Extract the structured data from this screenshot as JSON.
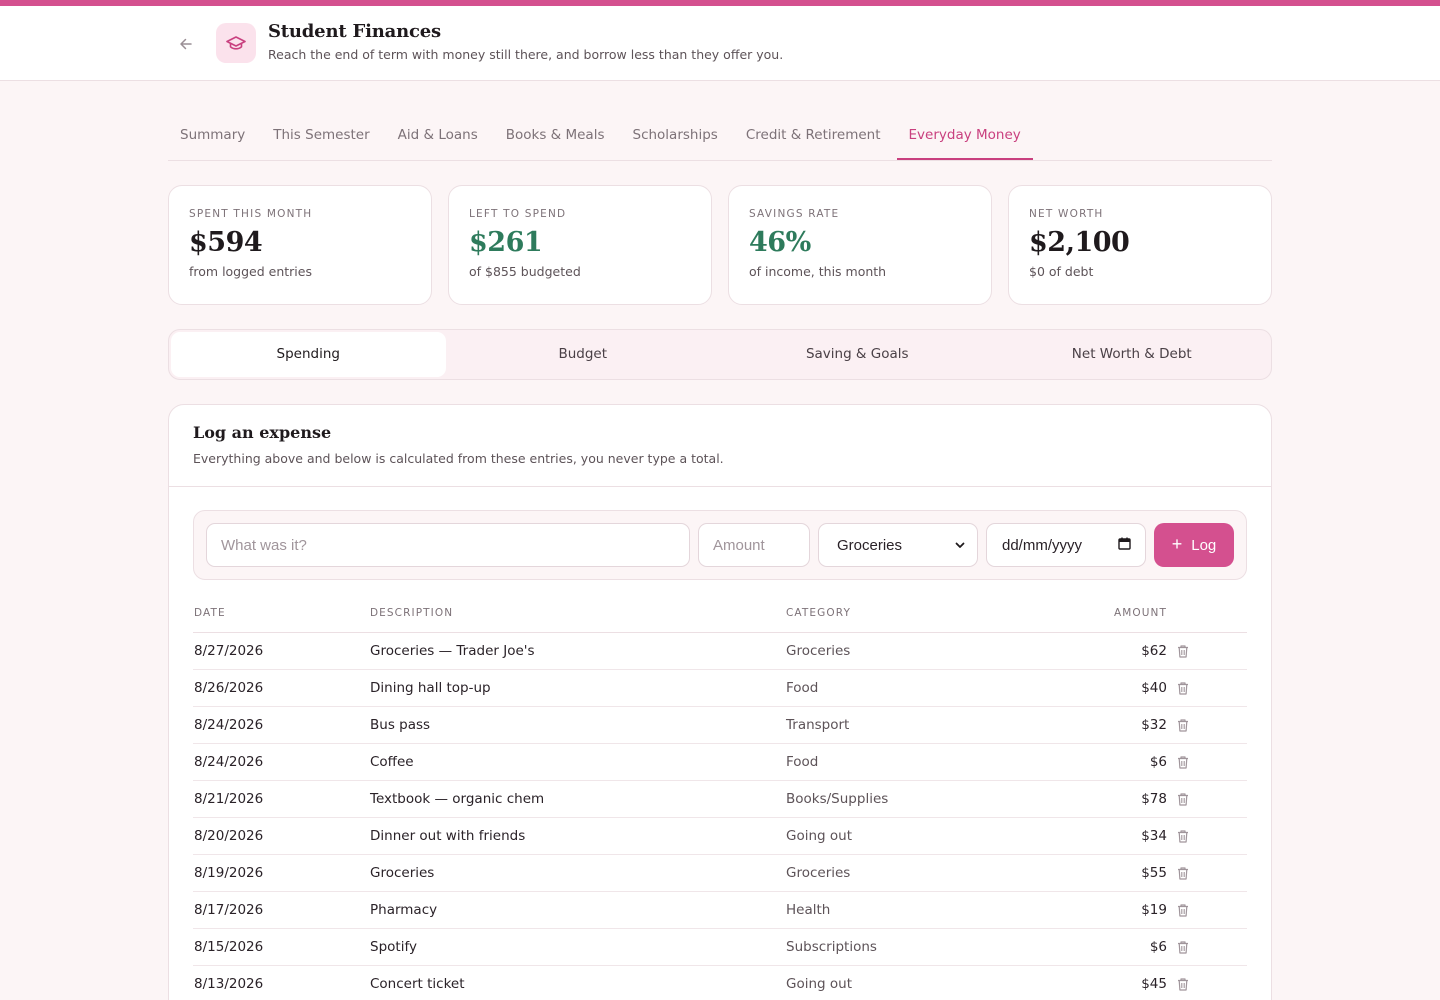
{
  "accent": "#d4508f",
  "header": {
    "title": "Student Finances",
    "subtitle": "Reach the end of term with money still there, and borrow less than they offer you."
  },
  "tabs": [
    {
      "label": "Summary"
    },
    {
      "label": "This Semester"
    },
    {
      "label": "Aid & Loans"
    },
    {
      "label": "Books & Meals"
    },
    {
      "label": "Scholarships"
    },
    {
      "label": "Credit & Retirement"
    },
    {
      "label": "Everyday Money",
      "active": true
    }
  ],
  "cards": [
    {
      "label": "SPENT THIS MONTH",
      "value": "$594",
      "note": "from logged entries"
    },
    {
      "label": "LEFT TO SPEND",
      "value": "$261",
      "note": "of $855 budgeted"
    },
    {
      "label": "SAVINGS RATE",
      "value": "46%",
      "note": "of income, this month"
    },
    {
      "label": "NET WORTH",
      "value": "$2,100",
      "note": "$0 of debt"
    }
  ],
  "segments": [
    {
      "label": "Spending",
      "active": true
    },
    {
      "label": "Budget"
    },
    {
      "label": "Saving & Goals"
    },
    {
      "label": "Net Worth & Debt"
    }
  ],
  "log": {
    "title": "Log an expense",
    "subtitle": "Everything above and below is calculated from these entries, you never type a total.",
    "description_placeholder": "What was it?",
    "amount_placeholder": "Amount",
    "category_value": "Groceries",
    "date_placeholder": "dd/mm/yyyy",
    "button_label": "Log"
  },
  "table": {
    "headers": {
      "date": "DATE",
      "description": "DESCRIPTION",
      "category": "CATEGORY",
      "amount": "AMOUNT"
    },
    "rows": [
      {
        "date": "8/27/2026",
        "description": "Groceries — Trader Joe's",
        "category": "Groceries",
        "amount": "$62"
      },
      {
        "date": "8/26/2026",
        "description": "Dining hall top-up",
        "category": "Food",
        "amount": "$40"
      },
      {
        "date": "8/24/2026",
        "description": "Bus pass",
        "category": "Transport",
        "amount": "$32"
      },
      {
        "date": "8/24/2026",
        "description": "Coffee",
        "category": "Food",
        "amount": "$6"
      },
      {
        "date": "8/21/2026",
        "description": "Textbook — organic chem",
        "category": "Books/Supplies",
        "amount": "$78"
      },
      {
        "date": "8/20/2026",
        "description": "Dinner out with friends",
        "category": "Going out",
        "amount": "$34"
      },
      {
        "date": "8/19/2026",
        "description": "Groceries",
        "category": "Groceries",
        "amount": "$55"
      },
      {
        "date": "8/17/2026",
        "description": "Pharmacy",
        "category": "Health",
        "amount": "$19"
      },
      {
        "date": "8/15/2026",
        "description": "Spotify",
        "category": "Subscriptions",
        "amount": "$6"
      },
      {
        "date": "8/13/2026",
        "description": "Concert ticket",
        "category": "Going out",
        "amount": "$45"
      }
    ]
  }
}
